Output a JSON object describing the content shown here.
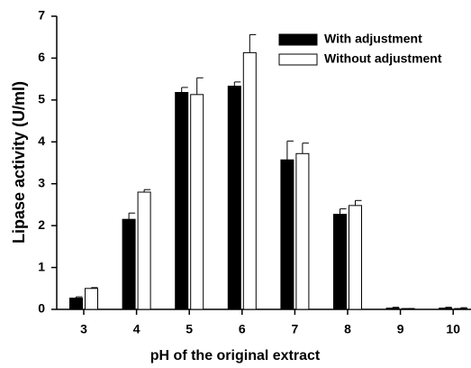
{
  "chart_data": {
    "type": "bar",
    "xlabel": "pH of the original extract",
    "ylabel": "Lipase activity (U/ml)",
    "categories": [
      "3",
      "4",
      "5",
      "6",
      "7",
      "8",
      "9",
      "10"
    ],
    "series": [
      {
        "name": "With adjustment",
        "color": "#000000",
        "values": [
          0.27,
          2.15,
          5.18,
          5.33,
          3.57,
          2.27,
          0.03,
          0.03
        ],
        "errors": [
          0.03,
          0.15,
          0.12,
          0.1,
          0.45,
          0.13,
          0.02,
          0.02
        ]
      },
      {
        "name": "Without adjustment",
        "color": "#ffffff",
        "values": [
          0.5,
          2.8,
          5.13,
          6.13,
          3.72,
          2.48,
          0.02,
          0.02
        ],
        "errors": [
          0.02,
          0.06,
          0.4,
          0.43,
          0.25,
          0.12,
          0,
          0.02
        ]
      }
    ],
    "ylim": [
      0,
      7
    ],
    "yticks": [
      0,
      1,
      2,
      3,
      4,
      5,
      6,
      7
    ],
    "legend": "upper right"
  }
}
